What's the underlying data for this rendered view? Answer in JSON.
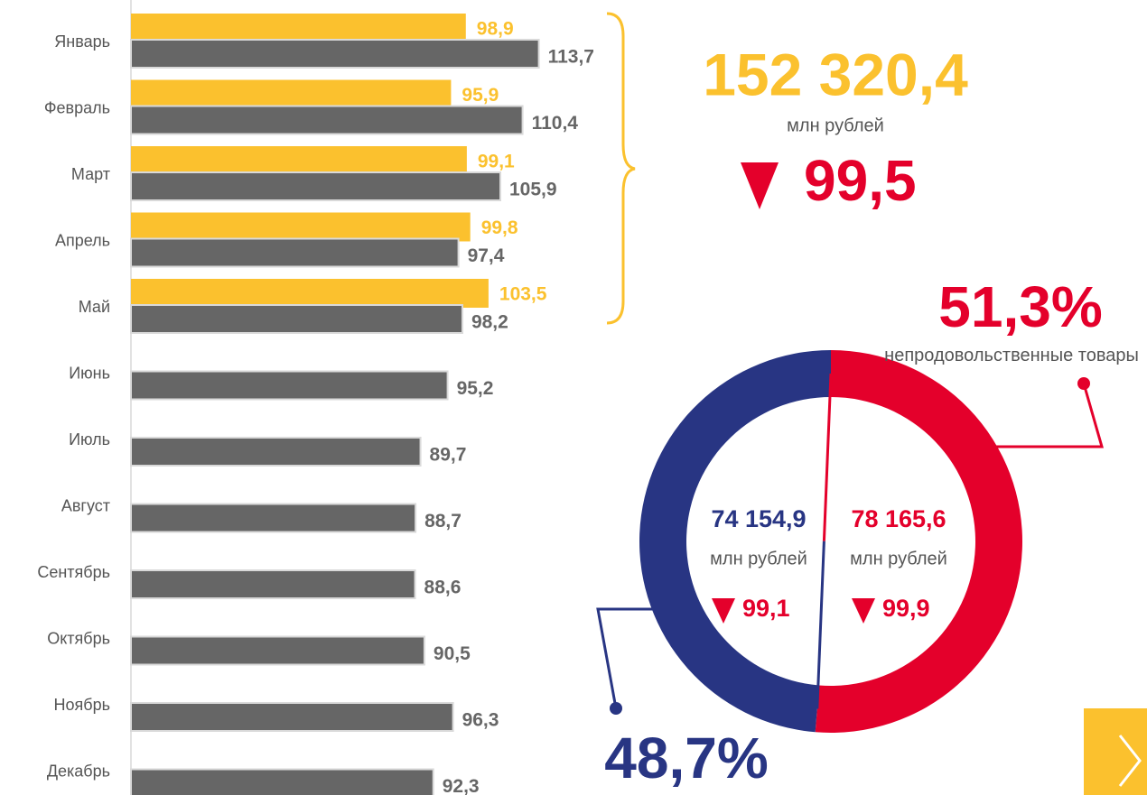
{
  "chart_data": [
    {
      "type": "bar",
      "orientation": "horizontal",
      "categories": [
        "Январь",
        "Февраль",
        "Март",
        "Апрель",
        "Май",
        "Июнь",
        "Июль",
        "Август",
        "Сентябрь",
        "Октябрь",
        "Ноябрь",
        "Декабрь"
      ],
      "series": [
        {
          "color": "#fbc12e",
          "values": [
            98.9,
            95.9,
            99.1,
            99.8,
            103.5,
            null,
            null,
            null,
            null,
            null,
            null,
            null
          ],
          "value_labels": [
            "98,9",
            "95,9",
            "99,1",
            "99,8",
            "103,5",
            null,
            null,
            null,
            null,
            null,
            null,
            null
          ]
        },
        {
          "color": "#666666",
          "values": [
            113.7,
            110.4,
            105.9,
            97.4,
            98.2,
            95.2,
            89.7,
            88.7,
            88.6,
            90.5,
            96.3,
            92.3
          ],
          "value_labels": [
            "113,7",
            "110,4",
            "105,9",
            "97,4",
            "98,2",
            "95,2",
            "89,7",
            "88,7",
            "88,6",
            "90,5",
            "96,3",
            "92,3"
          ]
        }
      ],
      "xlim": [
        31,
        120
      ]
    },
    {
      "type": "donut",
      "categories": [
        "непродовольственные товары",
        null
      ],
      "values": [
        51.3,
        48.7
      ],
      "value_labels": [
        "51,3%",
        "48,7%"
      ],
      "colors": [
        "#e4002b",
        "#283583"
      ],
      "amounts": [
        "78 165,6",
        "74 154,9"
      ],
      "units": [
        "млн рублей",
        "млн рублей"
      ],
      "indices": [
        "99,9",
        "99,1"
      ]
    }
  ],
  "summary": {
    "total": "152 320,4",
    "unit": "млн рублей",
    "index": "99,5"
  }
}
